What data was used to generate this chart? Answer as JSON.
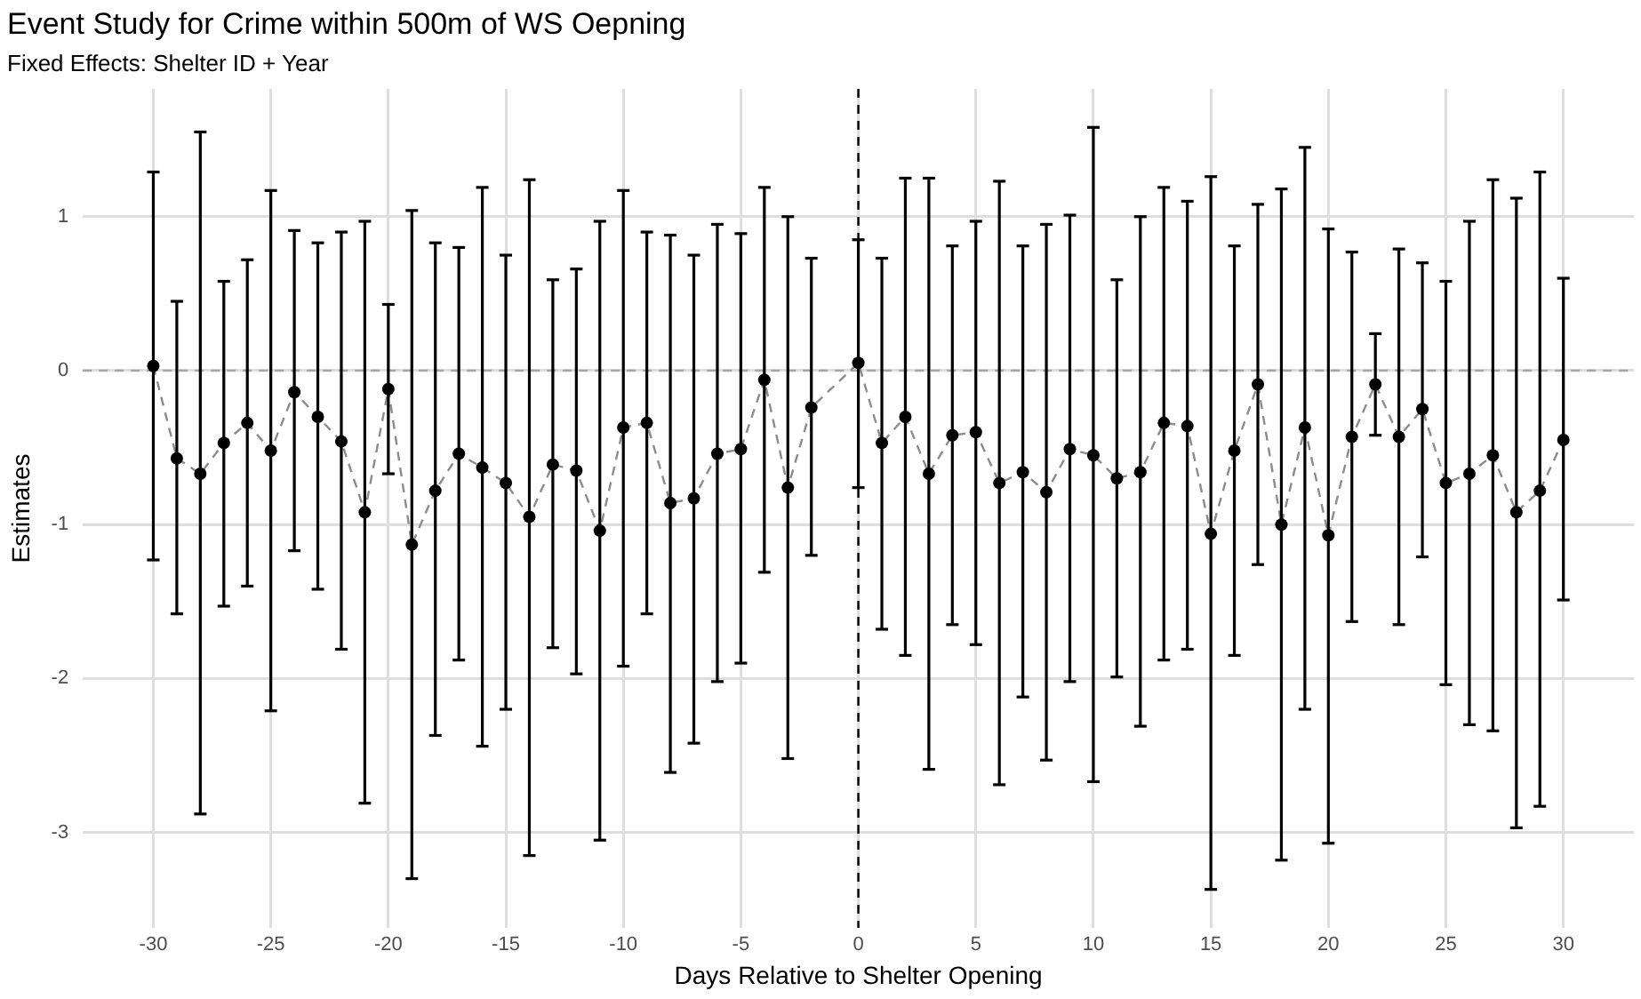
{
  "chart_data": {
    "type": "scatter",
    "title": "Event Study for Crime within 500m of WS Oepning",
    "subtitle": "Fixed Effects: Shelter ID + Year",
    "xlabel": "Days Relative to Shelter Opening",
    "ylabel": "Estimates",
    "x": [
      -30,
      -29,
      -28,
      -27,
      -26,
      -25,
      -24,
      -23,
      -22,
      -21,
      -20,
      -19,
      -18,
      -17,
      -16,
      -15,
      -14,
      -13,
      -12,
      -11,
      -10,
      -9,
      -8,
      -7,
      -6,
      -5,
      -4,
      -3,
      -2,
      0,
      1,
      2,
      3,
      4,
      5,
      6,
      7,
      8,
      9,
      10,
      11,
      12,
      13,
      14,
      15,
      16,
      17,
      18,
      19,
      20,
      21,
      22,
      23,
      24,
      25,
      26,
      27,
      28,
      29,
      30
    ],
    "series": [
      {
        "type": "scatter",
        "color": "#000000",
        "marker": "circle",
        "values": [
          0.03,
          -0.57,
          -0.67,
          -0.47,
          -0.34,
          -0.52,
          -0.14,
          -0.3,
          -0.46,
          -0.92,
          -0.12,
          -1.13,
          -0.78,
          -0.54,
          -0.63,
          -0.73,
          -0.95,
          -0.61,
          -0.65,
          -1.04,
          -0.37,
          -0.34,
          -0.86,
          -0.83,
          -0.54,
          -0.51,
          -0.06,
          -0.76,
          -0.24,
          0.05,
          -0.47,
          -0.3,
          -0.67,
          -0.42,
          -0.4,
          -0.73,
          -0.66,
          -0.79,
          -0.51,
          -0.55,
          -0.7,
          -0.66,
          -0.34,
          -0.36,
          -1.06,
          -0.52,
          -0.09,
          -1.0,
          -0.37,
          -1.07,
          -0.43,
          -0.09,
          -0.43,
          -0.25,
          -0.73,
          -0.67,
          -0.55,
          -0.92,
          -0.78,
          -0.45
        ],
        "errors": [
          [
            -1.23,
            1.29
          ],
          [
            -1.58,
            0.45
          ],
          [
            -2.88,
            1.55
          ],
          [
            -1.53,
            0.58
          ],
          [
            -1.4,
            0.72
          ],
          [
            -2.21,
            1.17
          ],
          [
            -1.17,
            0.91
          ],
          [
            -1.42,
            0.83
          ],
          [
            -1.81,
            0.9
          ],
          [
            -2.81,
            0.97
          ],
          [
            -0.67,
            0.43
          ],
          [
            -3.3,
            1.04
          ],
          [
            -2.37,
            0.83
          ],
          [
            -1.88,
            0.8
          ],
          [
            -2.44,
            1.19
          ],
          [
            -2.2,
            0.75
          ],
          [
            -3.15,
            1.24
          ],
          [
            -1.8,
            0.59
          ],
          [
            -1.97,
            0.66
          ],
          [
            -3.05,
            0.97
          ],
          [
            -1.92,
            1.17
          ],
          [
            -1.58,
            0.9
          ],
          [
            -2.61,
            0.88
          ],
          [
            -2.42,
            0.75
          ],
          [
            -2.02,
            0.95
          ],
          [
            -1.9,
            0.89
          ],
          [
            -1.31,
            1.19
          ],
          [
            -2.52,
            1.0
          ],
          [
            -1.2,
            0.73
          ],
          [
            -0.76,
            0.85
          ],
          [
            -1.68,
            0.73
          ],
          [
            -1.85,
            1.25
          ],
          [
            -2.59,
            1.25
          ],
          [
            -1.65,
            0.81
          ],
          [
            -1.78,
            0.97
          ],
          [
            -2.69,
            1.23
          ],
          [
            -2.12,
            0.81
          ],
          [
            -2.53,
            0.95
          ],
          [
            -2.02,
            1.01
          ],
          [
            -2.67,
            1.58
          ],
          [
            -1.99,
            0.59
          ],
          [
            -2.31,
            1.0
          ],
          [
            -1.88,
            1.19
          ],
          [
            -1.81,
            1.1
          ],
          [
            -3.37,
            1.26
          ],
          [
            -1.85,
            0.81
          ],
          [
            -1.26,
            1.08
          ],
          [
            -3.18,
            1.18
          ],
          [
            -2.2,
            1.45
          ],
          [
            -3.07,
            0.92
          ],
          [
            -1.63,
            0.77
          ],
          [
            -0.42,
            0.24
          ],
          [
            -1.65,
            0.79
          ],
          [
            -1.21,
            0.7
          ],
          [
            -2.04,
            0.58
          ],
          [
            -2.3,
            0.97
          ],
          [
            -2.34,
            1.24
          ],
          [
            -2.97,
            1.12
          ],
          [
            -2.83,
            1.29
          ],
          [
            -1.49,
            0.6
          ]
        ]
      },
      {
        "type": "line",
        "color": "#8c8c8c",
        "line_style": "dashed",
        "marker": "none",
        "values": [
          0.03,
          -0.57,
          -0.67,
          -0.47,
          -0.34,
          -0.52,
          -0.14,
          -0.3,
          -0.46,
          -0.92,
          -0.12,
          -1.13,
          -0.78,
          -0.54,
          -0.63,
          -0.73,
          -0.95,
          -0.61,
          -0.65,
          -1.04,
          -0.37,
          -0.34,
          -0.86,
          -0.83,
          -0.54,
          -0.51,
          -0.06,
          -0.76,
          -0.24,
          0.05,
          -0.47,
          -0.3,
          -0.67,
          -0.42,
          -0.4,
          -0.73,
          -0.66,
          -0.79,
          -0.51,
          -0.55,
          -0.7,
          -0.66,
          -0.34,
          -0.36,
          -1.06,
          -0.52,
          -0.09,
          -1.0,
          -0.37,
          -1.07,
          -0.43,
          -0.09,
          -0.43,
          -0.25,
          -0.73,
          -0.67,
          -0.55,
          -0.92,
          -0.78,
          -0.45
        ]
      }
    ],
    "xlim": [
      -33,
      33
    ],
    "xticks": [
      -30,
      -25,
      -20,
      -15,
      -10,
      -5,
      0,
      5,
      10,
      15,
      20,
      25,
      30
    ],
    "ylim": [
      -3.62,
      1.83
    ],
    "yticks": [
      -3,
      -2,
      -1,
      0,
      1
    ],
    "ref_lines": [
      {
        "axis": "y",
        "value": 0,
        "color": "#a6a6a6",
        "line_style": "dashed"
      },
      {
        "axis": "x",
        "value": 0,
        "color": "#000000",
        "line_style": "dashed"
      }
    ],
    "grid": true,
    "legend": false
  }
}
